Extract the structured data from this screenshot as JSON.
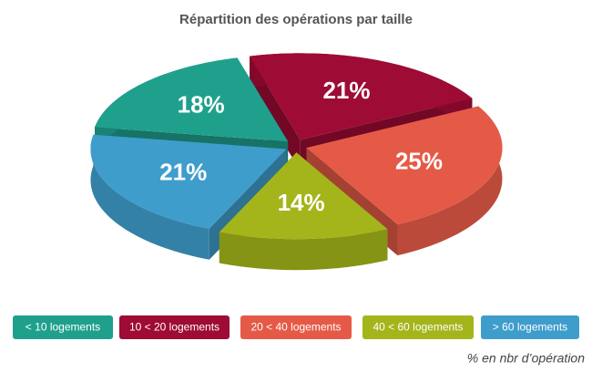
{
  "chart_data": {
    "type": "pie",
    "title": "Répartition des opérations par taille",
    "categories": [
      "< 10 logements",
      "10 < 20 logements",
      "20 < 40 logements",
      "40 < 60 logements",
      "> 60 logements"
    ],
    "values": [
      18,
      21,
      25,
      14,
      21
    ],
    "value_labels": [
      "18%",
      "21%",
      "25%",
      "14%",
      "21%"
    ],
    "colors": [
      "#1fa08d",
      "#9e0b35",
      "#e55a47",
      "#a3b51a",
      "#3f9dcc"
    ],
    "note": "% en nbr d’opération"
  }
}
